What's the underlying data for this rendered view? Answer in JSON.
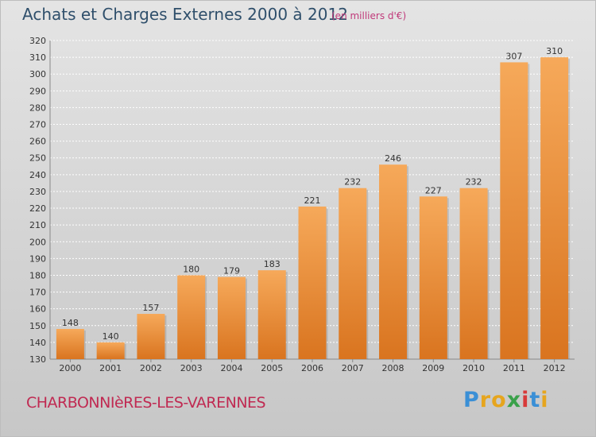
{
  "title": "Achats et Charges Externes 2000 à 2012",
  "subtitle": "(en milliers d'€)",
  "commune": "CHARBONNIèRES-LES-VARENNES",
  "logo": "Proxiti",
  "colors": {
    "bar_top": "#f6a95a",
    "bar_bottom": "#d9741f",
    "grid": "#ffffff",
    "axis_text": "#333333"
  },
  "chart_data": {
    "type": "bar",
    "title": "Achats et Charges Externes 2000 à 2012",
    "subtitle": "(en milliers d'€)",
    "categories": [
      "2000",
      "2001",
      "2002",
      "2003",
      "2004",
      "2005",
      "2006",
      "2007",
      "2008",
      "2009",
      "2010",
      "2011",
      "2012"
    ],
    "values": [
      148,
      140,
      157,
      180,
      179,
      183,
      221,
      232,
      246,
      227,
      232,
      307,
      310
    ],
    "ylim": [
      130,
      320
    ],
    "ytick_step": 10,
    "grid": true,
    "xlabel": "",
    "ylabel": ""
  }
}
